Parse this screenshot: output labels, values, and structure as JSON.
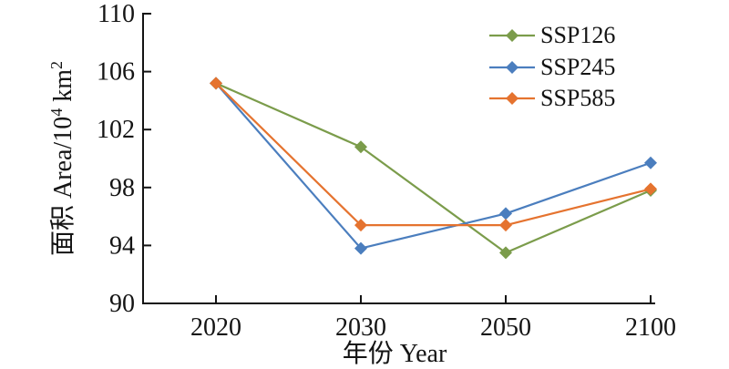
{
  "chart_data": {
    "type": "line",
    "title": "",
    "xlabel": "年份 Year",
    "ylabel": "面积 Area/10⁴ km²",
    "ylabel_parts": [
      {
        "t": "面积 Area/10",
        "sup": false
      },
      {
        "t": "4",
        "sup": true
      },
      {
        "t": " km",
        "sup": false
      },
      {
        "t": "2",
        "sup": true
      }
    ],
    "categories": [
      "2020",
      "2030",
      "2050",
      "2100"
    ],
    "ylim": [
      90,
      110
    ],
    "yticks": [
      90,
      94,
      98,
      102,
      106,
      110
    ],
    "grid": false,
    "legend_position": "top-right-inside",
    "marker": "diamond",
    "axis_color": "#141414",
    "background_color": "#ffffff",
    "series": [
      {
        "name": "SSP126",
        "color": "#7B9C4B",
        "values": [
          105.2,
          100.8,
          93.5,
          97.8
        ]
      },
      {
        "name": "SSP245",
        "color": "#4B7EBE",
        "values": [
          105.2,
          93.8,
          96.2,
          99.7
        ]
      },
      {
        "name": "SSP585",
        "color": "#E5732F",
        "values": [
          105.2,
          95.4,
          95.4,
          97.9
        ]
      }
    ]
  }
}
